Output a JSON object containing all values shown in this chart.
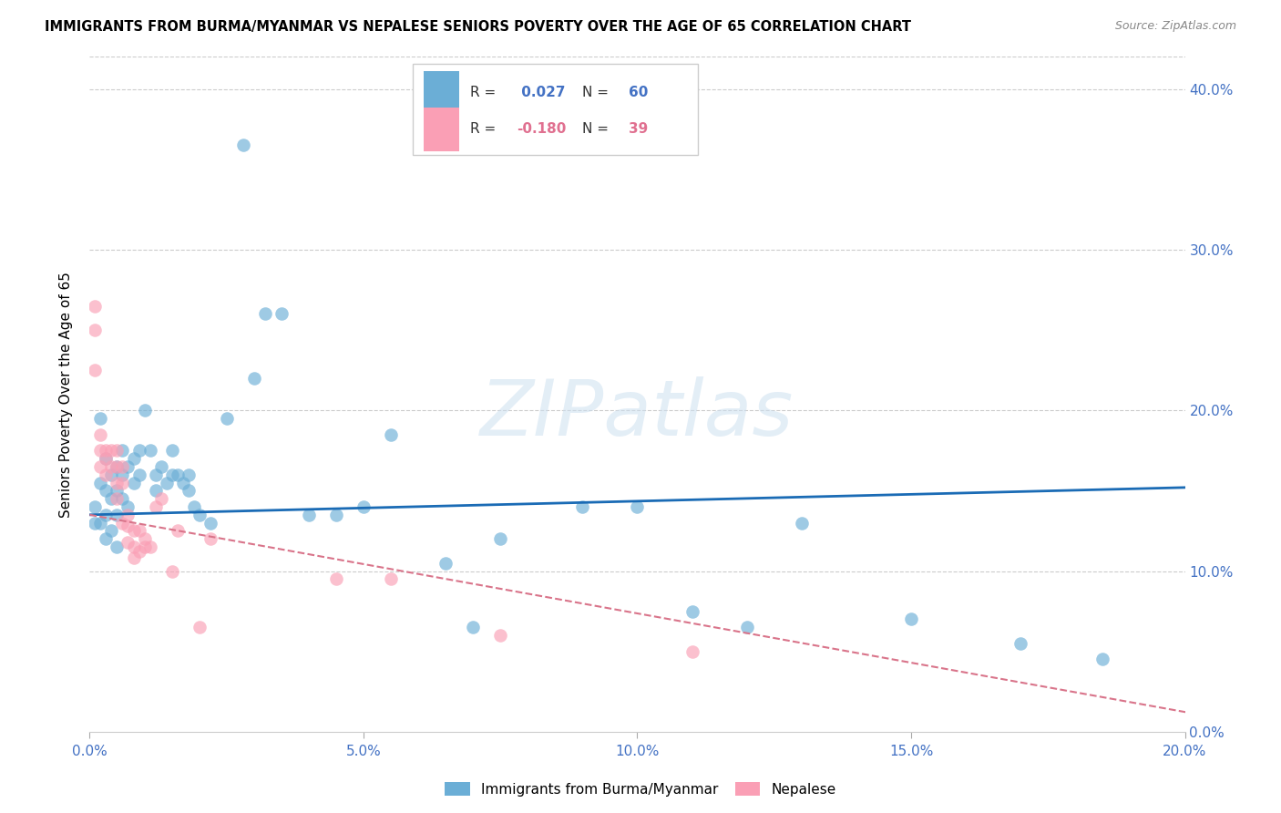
{
  "title": "IMMIGRANTS FROM BURMA/MYANMAR VS NEPALESE SENIORS POVERTY OVER THE AGE OF 65 CORRELATION CHART",
  "source": "Source: ZipAtlas.com",
  "ylabel": "Seniors Poverty Over the Age of 65",
  "legend_label_1": "Immigrants from Burma/Myanmar",
  "legend_label_2": "Nepalese",
  "r1": 0.027,
  "n1": 60,
  "r2": -0.18,
  "n2": 39,
  "xlim": [
    0.0,
    0.2
  ],
  "ylim": [
    0.0,
    0.42
  ],
  "xticks": [
    0.0,
    0.05,
    0.1,
    0.15,
    0.2
  ],
  "yticks": [
    0.0,
    0.1,
    0.2,
    0.3,
    0.4
  ],
  "color_blue": "#6baed6",
  "color_pink": "#fa9fb5",
  "trendline_blue": "#1a6bb5",
  "trendline_pink": "#d9748a",
  "watermark": "ZIPatlas",
  "blue_trendline_y0": 0.135,
  "blue_trendline_y1": 0.152,
  "pink_trendline_y0": 0.135,
  "pink_trendline_y1": 0.0,
  "blue_points_x": [
    0.001,
    0.001,
    0.002,
    0.002,
    0.002,
    0.003,
    0.003,
    0.003,
    0.003,
    0.004,
    0.004,
    0.004,
    0.005,
    0.005,
    0.005,
    0.005,
    0.006,
    0.006,
    0.006,
    0.007,
    0.007,
    0.008,
    0.008,
    0.009,
    0.009,
    0.01,
    0.011,
    0.012,
    0.012,
    0.013,
    0.014,
    0.015,
    0.015,
    0.016,
    0.017,
    0.018,
    0.018,
    0.019,
    0.02,
    0.022,
    0.025,
    0.028,
    0.03,
    0.032,
    0.035,
    0.04,
    0.045,
    0.05,
    0.055,
    0.065,
    0.07,
    0.075,
    0.09,
    0.1,
    0.11,
    0.12,
    0.13,
    0.15,
    0.17,
    0.185
  ],
  "blue_points_y": [
    0.14,
    0.13,
    0.195,
    0.155,
    0.13,
    0.17,
    0.15,
    0.135,
    0.12,
    0.16,
    0.145,
    0.125,
    0.165,
    0.15,
    0.135,
    0.115,
    0.175,
    0.16,
    0.145,
    0.165,
    0.14,
    0.17,
    0.155,
    0.175,
    0.16,
    0.2,
    0.175,
    0.16,
    0.15,
    0.165,
    0.155,
    0.175,
    0.16,
    0.16,
    0.155,
    0.16,
    0.15,
    0.14,
    0.135,
    0.13,
    0.195,
    0.365,
    0.22,
    0.26,
    0.26,
    0.135,
    0.135,
    0.14,
    0.185,
    0.105,
    0.065,
    0.12,
    0.14,
    0.14,
    0.075,
    0.065,
    0.13,
    0.07,
    0.055,
    0.045
  ],
  "pink_points_x": [
    0.001,
    0.001,
    0.001,
    0.002,
    0.002,
    0.002,
    0.003,
    0.003,
    0.003,
    0.004,
    0.004,
    0.005,
    0.005,
    0.005,
    0.005,
    0.006,
    0.006,
    0.006,
    0.007,
    0.007,
    0.007,
    0.008,
    0.008,
    0.008,
    0.009,
    0.009,
    0.01,
    0.01,
    0.011,
    0.012,
    0.013,
    0.015,
    0.016,
    0.02,
    0.022,
    0.045,
    0.055,
    0.075,
    0.11
  ],
  "pink_points_y": [
    0.265,
    0.25,
    0.225,
    0.185,
    0.175,
    0.165,
    0.175,
    0.17,
    0.16,
    0.175,
    0.165,
    0.175,
    0.165,
    0.155,
    0.145,
    0.165,
    0.155,
    0.13,
    0.135,
    0.128,
    0.118,
    0.125,
    0.115,
    0.108,
    0.125,
    0.112,
    0.12,
    0.115,
    0.115,
    0.14,
    0.145,
    0.1,
    0.125,
    0.065,
    0.12,
    0.095,
    0.095,
    0.06,
    0.05
  ]
}
